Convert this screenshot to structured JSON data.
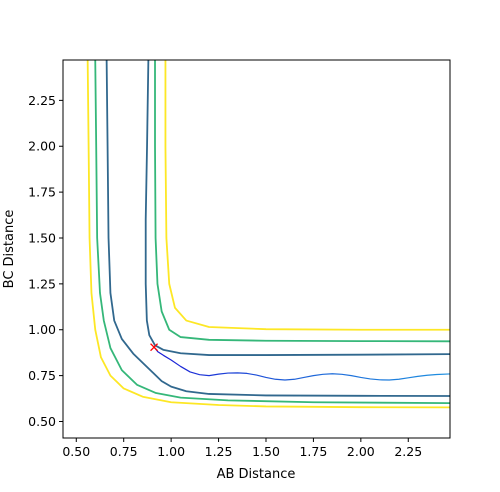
{
  "chart_data": {
    "type": "line",
    "title": "",
    "xlabel": "AB Distance",
    "ylabel": "BC Distance",
    "xlim": [
      0.43,
      2.47
    ],
    "ylim": [
      0.41,
      2.47
    ],
    "x_ticks": [
      "0.50",
      "0.75",
      "1.00",
      "1.25",
      "1.50",
      "1.75",
      "2.00",
      "2.25"
    ],
    "y_ticks": [
      "0.50",
      "0.75",
      "1.00",
      "1.25",
      "1.50",
      "1.75",
      "2.00",
      "2.25"
    ],
    "grid": false,
    "legend": "none",
    "contours": [
      {
        "color": "#fde725",
        "segments": [
          [
            [
              0.56,
              2.47
            ],
            [
              0.565,
              2.0
            ],
            [
              0.57,
              1.5
            ],
            [
              0.58,
              1.2
            ],
            [
              0.6,
              1.0
            ],
            [
              0.63,
              0.85
            ],
            [
              0.68,
              0.75
            ],
            [
              0.75,
              0.68
            ],
            [
              0.85,
              0.635
            ],
            [
              1.0,
              0.605
            ],
            [
              1.25,
              0.59
            ],
            [
              1.5,
              0.582
            ],
            [
              2.0,
              0.578
            ],
            [
              2.47,
              0.577
            ]
          ],
          [
            [
              0.97,
              2.47
            ],
            [
              0.97,
              2.0
            ],
            [
              0.975,
              1.5
            ],
            [
              0.99,
              1.25
            ],
            [
              1.02,
              1.12
            ],
            [
              1.08,
              1.05
            ],
            [
              1.2,
              1.015
            ],
            [
              1.5,
              1.003
            ],
            [
              2.0,
              1.0
            ],
            [
              2.47,
              1.0
            ]
          ]
        ]
      },
      {
        "color": "#35b779",
        "segments": [
          [
            [
              0.6,
              2.47
            ],
            [
              0.605,
              2.0
            ],
            [
              0.61,
              1.5
            ],
            [
              0.625,
              1.2
            ],
            [
              0.645,
              1.05
            ],
            [
              0.68,
              0.9
            ],
            [
              0.74,
              0.78
            ],
            [
              0.82,
              0.7
            ],
            [
              0.92,
              0.655
            ],
            [
              1.05,
              0.63
            ],
            [
              1.3,
              0.615
            ],
            [
              1.75,
              0.605
            ],
            [
              2.47,
              0.6
            ]
          ],
          [
            [
              0.915,
              2.47
            ],
            [
              0.915,
              2.0
            ],
            [
              0.918,
              1.5
            ],
            [
              0.928,
              1.25
            ],
            [
              0.95,
              1.1
            ],
            [
              0.99,
              1.0
            ],
            [
              1.05,
              0.96
            ],
            [
              1.2,
              0.945
            ],
            [
              1.5,
              0.94
            ],
            [
              2.0,
              0.938
            ],
            [
              2.47,
              0.937
            ]
          ]
        ]
      },
      {
        "color": "#31688e",
        "segments": [
          [
            [
              0.66,
              2.47
            ],
            [
              0.665,
              2.0
            ],
            [
              0.67,
              1.5
            ],
            [
              0.68,
              1.2
            ],
            [
              0.7,
              1.05
            ],
            [
              0.74,
              0.95
            ],
            [
              0.8,
              0.87
            ],
            [
              0.86,
              0.81
            ],
            [
              0.91,
              0.76
            ],
            [
              0.95,
              0.72
            ],
            [
              1.0,
              0.69
            ],
            [
              1.08,
              0.665
            ],
            [
              1.2,
              0.65
            ],
            [
              1.5,
              0.642
            ],
            [
              2.0,
              0.64
            ],
            [
              2.47,
              0.639
            ]
          ],
          [
            [
              0.88,
              2.47
            ],
            [
              0.873,
              2.0
            ],
            [
              0.866,
              1.6
            ],
            [
              0.866,
              1.25
            ],
            [
              0.872,
              1.05
            ],
            [
              0.885,
              0.97
            ],
            [
              0.915,
              0.915
            ],
            [
              0.96,
              0.89
            ],
            [
              1.05,
              0.872
            ],
            [
              1.2,
              0.862
            ],
            [
              1.5,
              0.862
            ],
            [
              2.0,
              0.864
            ],
            [
              2.47,
              0.867
            ]
          ]
        ]
      }
    ],
    "trajectory": {
      "x": [
        0.91,
        0.93,
        0.96,
        1.0,
        1.05,
        1.1,
        1.15,
        1.2,
        1.25,
        1.3,
        1.35,
        1.4,
        1.45,
        1.5,
        1.55,
        1.6,
        1.65,
        1.7,
        1.75,
        1.8,
        1.85,
        1.9,
        1.95,
        2.0,
        2.05,
        2.1,
        2.15,
        2.2,
        2.25,
        2.3,
        2.35,
        2.4,
        2.47
      ],
      "y": [
        0.905,
        0.88,
        0.86,
        0.835,
        0.8,
        0.77,
        0.755,
        0.75,
        0.758,
        0.764,
        0.765,
        0.762,
        0.753,
        0.74,
        0.73,
        0.726,
        0.73,
        0.74,
        0.75,
        0.757,
        0.76,
        0.757,
        0.75,
        0.74,
        0.732,
        0.727,
        0.726,
        0.73,
        0.738,
        0.746,
        0.752,
        0.756,
        0.759
      ]
    },
    "start_marker": {
      "x": 0.91,
      "y": 0.905,
      "symbol": "x",
      "color": "#ff0000"
    }
  }
}
